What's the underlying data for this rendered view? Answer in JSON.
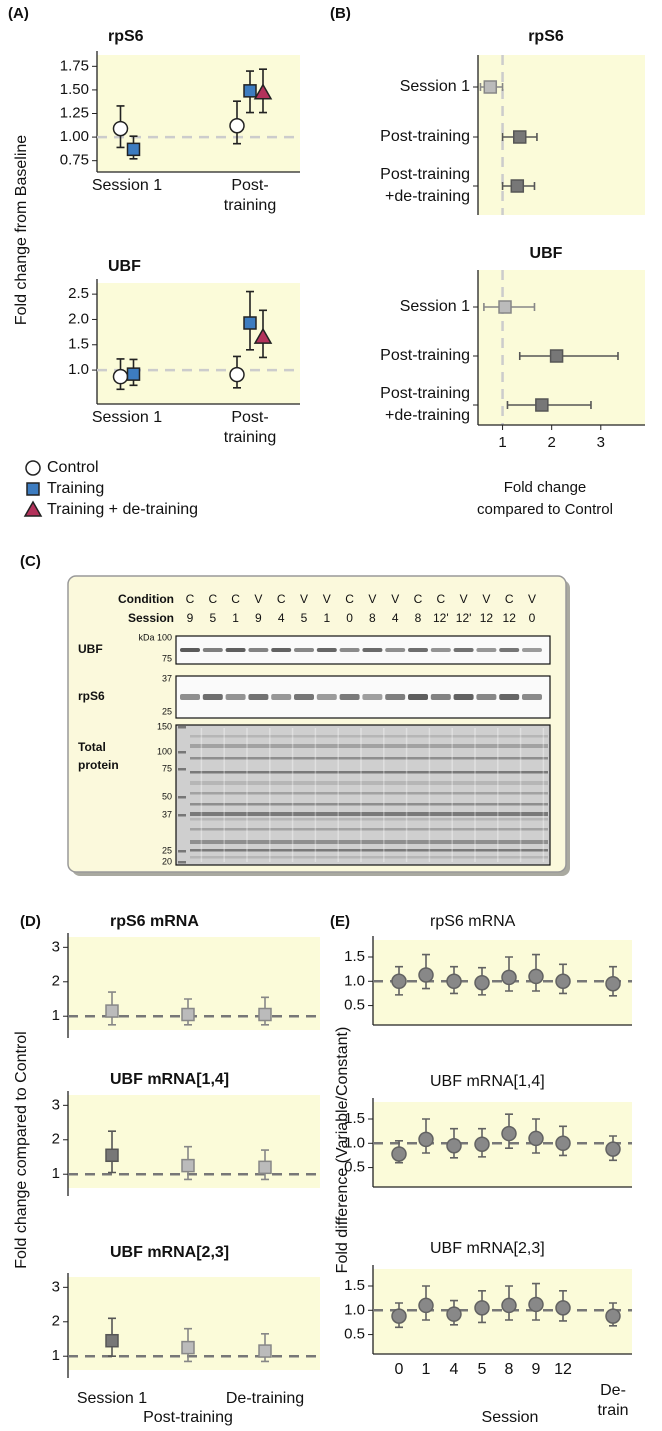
{
  "chart_data": [
    {
      "type": "errorbar",
      "panel": "(A)",
      "title": "rpS6",
      "ylabel": "Fold change from Baseline",
      "categories": [
        "Session 1",
        "Post-\ntraining"
      ],
      "ylim": [
        0.63,
        1.87
      ],
      "yticks": [
        0.75,
        {
          "value": 1,
          "label": "1.00"
        },
        1.25,
        {
          "value": 1.5,
          "label": "1.50"
        },
        1.75
      ],
      "refline": 1,
      "series": [
        {
          "name": "Control",
          "marker": "circle",
          "color": "#ffffff",
          "values": [
            1.09,
            1.12
          ],
          "lower": [
            0.89,
            0.93
          ],
          "upper": [
            1.33,
            1.38
          ]
        },
        {
          "name": "Training",
          "marker": "square",
          "color": "#3d7cc0",
          "values": [
            0.87,
            1.49
          ],
          "lower": [
            0.77,
            1.26
          ],
          "upper": [
            1.01,
            1.7
          ]
        },
        {
          "name": "Training + de-training",
          "marker": "triangle",
          "color": "#b3325b",
          "values": [
            null,
            1.47
          ],
          "lower": [
            null,
            1.26
          ],
          "upper": [
            null,
            1.72
          ]
        }
      ]
    },
    {
      "type": "errorbar",
      "title": "UBF",
      "categories": [
        "Session 1",
        "Post-\ntraining"
      ],
      "ylim": [
        0.33,
        2.72
      ],
      "yticks": [
        {
          "value": 1,
          "label": "1.0"
        },
        1.5,
        {
          "value": 2,
          "label": "2.0"
        },
        2.5
      ],
      "refline": 1,
      "series": [
        {
          "marker": "circle",
          "color": "#ffffff",
          "values": [
            0.87,
            0.91
          ],
          "lower": [
            0.62,
            0.65
          ],
          "upper": [
            1.22,
            1.27
          ]
        },
        {
          "marker": "square",
          "color": "#3d7cc0",
          "values": [
            0.92,
            1.93
          ],
          "lower": [
            0.7,
            1.4
          ],
          "upper": [
            1.21,
            2.55
          ]
        },
        {
          "marker": "triangle",
          "color": "#b3325b",
          "values": [
            null,
            1.65
          ],
          "lower": [
            null,
            1.25
          ],
          "upper": [
            null,
            2.18
          ]
        }
      ]
    },
    {
      "type": "errorbar",
      "orientation": "horizontal",
      "panel": "(B)",
      "title": "rpS6",
      "categories": [
        "Session 1",
        "Post-training",
        "Post-training\n+de-training"
      ],
      "xlim": [
        0.5,
        3.9
      ],
      "refline": 1,
      "marker": "square",
      "colors": [
        "#bbbbbb",
        "#777777",
        "#777777"
      ],
      "values": [
        0.75,
        1.35,
        1.3
      ],
      "lower": [
        0.55,
        1.0,
        1.0
      ],
      "upper": [
        1.0,
        1.7,
        1.65
      ]
    },
    {
      "type": "errorbar",
      "orientation": "horizontal",
      "title": "UBF",
      "categories": [
        "Session 1",
        "Post-training",
        "Post-training\n+de-training"
      ],
      "xlim": [
        0.5,
        3.9
      ],
      "xticks": [
        1,
        2,
        3
      ],
      "xlabel": "Fold change\ncompared to Control",
      "refline": 1,
      "marker": "square",
      "colors": [
        "#bbbbbb",
        "#777777",
        "#777777"
      ],
      "values": [
        1.05,
        2.1,
        1.8
      ],
      "lower": [
        0.62,
        1.35,
        1.1
      ],
      "upper": [
        1.65,
        3.35,
        2.8
      ]
    },
    {
      "type": "errorbar",
      "panel": "(D)",
      "title": "rpS6 mRNA",
      "ylabel": "Fold change compared to Control",
      "ylim": [
        0.6,
        3.3
      ],
      "yticks": [
        1,
        2,
        3
      ],
      "refline": 1,
      "marker": "square",
      "colors": [
        "#bbbbbb",
        "#bbbbbb",
        "#bbbbbb"
      ],
      "values": [
        1.15,
        1.05,
        1.05
      ],
      "lower": [
        0.75,
        0.75,
        0.75
      ],
      "upper": [
        1.7,
        1.5,
        1.55
      ]
    },
    {
      "type": "errorbar",
      "title": "UBF mRNA[1,4]",
      "ylim": [
        0.6,
        3.3
      ],
      "yticks": [
        1,
        2,
        3
      ],
      "refline": 1,
      "marker": "square",
      "colors": [
        "#777777",
        "#bbbbbb",
        "#bbbbbb"
      ],
      "values": [
        1.55,
        1.25,
        1.2
      ],
      "lower": [
        1.05,
        0.85,
        0.85
      ],
      "upper": [
        2.25,
        1.8,
        1.7
      ]
    },
    {
      "type": "errorbar",
      "title": "UBF mRNA[2,3]",
      "categories": [
        "Session 1",
        "Post-training",
        "De-training"
      ],
      "ylim": [
        0.6,
        3.3
      ],
      "yticks": [
        1,
        2,
        3
      ],
      "refline": 1,
      "marker": "square",
      "colors": [
        "#777777",
        "#bbbbbb",
        "#bbbbbb"
      ],
      "values": [
        1.45,
        1.25,
        1.15
      ],
      "lower": [
        1.0,
        0.85,
        0.85
      ],
      "upper": [
        2.1,
        1.8,
        1.65
      ]
    },
    {
      "type": "errorbar",
      "panel": "(E)",
      "title": "rpS6 mRNA",
      "ylabel": "Fold difference (Variable/Constant)",
      "ylim": [
        0.1,
        1.85
      ],
      "yticks": [
        0.5,
        {
          "value": 1,
          "label": "1.0"
        },
        1.5
      ],
      "refline": 1,
      "marker": "circle",
      "color": "#888888",
      "values": [
        1.0,
        1.13,
        1.0,
        0.97,
        1.08,
        1.1,
        1.0,
        0.95
      ],
      "lower": [
        0.72,
        0.85,
        0.75,
        0.72,
        0.8,
        0.8,
        0.75,
        0.7
      ],
      "upper": [
        1.3,
        1.55,
        1.3,
        1.28,
        1.5,
        1.55,
        1.35,
        1.3
      ]
    },
    {
      "type": "errorbar",
      "title": "UBF mRNA[1,4]",
      "ylim": [
        0.1,
        1.85
      ],
      "yticks": [
        0.5,
        {
          "value": 1,
          "label": "1.0"
        },
        1.5
      ],
      "refline": 1,
      "marker": "circle",
      "color": "#888888",
      "values": [
        0.78,
        1.08,
        0.95,
        0.98,
        1.2,
        1.1,
        1.0,
        0.88
      ],
      "lower": [
        0.6,
        0.8,
        0.7,
        0.72,
        0.9,
        0.8,
        0.75,
        0.65
      ],
      "upper": [
        1.05,
        1.5,
        1.3,
        1.3,
        1.6,
        1.5,
        1.35,
        1.15
      ]
    },
    {
      "type": "errorbar",
      "title": "UBF mRNA[2,3]",
      "categories": [
        "0",
        "1",
        "4",
        "5",
        "8",
        "9",
        "12",
        "De-\ntrain"
      ],
      "xlabel": "Session",
      "ylim": [
        0.1,
        1.85
      ],
      "yticks": [
        0.5,
        {
          "value": 1,
          "label": "1.0"
        },
        1.5
      ],
      "refline": 1,
      "marker": "circle",
      "color": "#888888",
      "values": [
        0.88,
        1.1,
        0.92,
        1.05,
        1.1,
        1.12,
        1.05,
        0.88
      ],
      "lower": [
        0.65,
        0.8,
        0.7,
        0.75,
        0.8,
        0.8,
        0.78,
        0.68
      ],
      "upper": [
        1.15,
        1.5,
        1.2,
        1.4,
        1.5,
        1.55,
        1.4,
        1.15
      ]
    }
  ],
  "blot": {
    "panel": "(C)",
    "condition_label": "Condition",
    "session_label": "Session",
    "conditions": [
      "C",
      "C",
      "C",
      "V",
      "C",
      "V",
      "V",
      "C",
      "V",
      "V",
      "C",
      "C",
      "V",
      "V",
      "C",
      "V"
    ],
    "sessions": [
      "9",
      "5",
      "1",
      "9",
      "4",
      "5",
      "1",
      "0",
      "8",
      "4",
      "8",
      "12'",
      "12'",
      "12",
      "12",
      "0"
    ],
    "rows": [
      {
        "label": "UBF",
        "markers": [
          "kDa 100",
          "75"
        ]
      },
      {
        "label": "rpS6",
        "markers": [
          "37",
          "25"
        ]
      },
      {
        "label": "Total\nprotein",
        "markers": [
          "150",
          "100",
          "75",
          "50",
          "37",
          "25",
          "20"
        ]
      }
    ]
  }
}
